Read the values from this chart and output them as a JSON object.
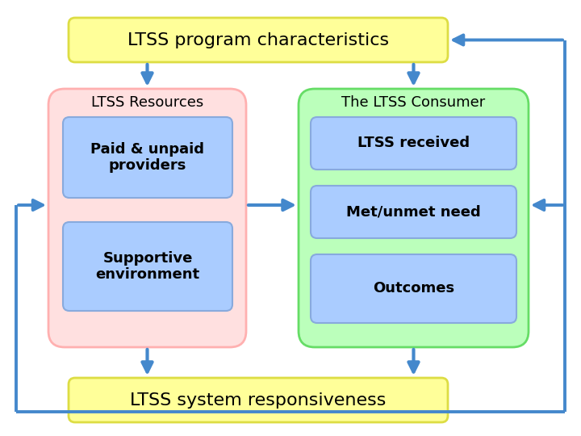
{
  "title": "LTSS program characteristics",
  "bottom_box": "LTSS system responsiveness",
  "left_group_title": "LTSS Resources",
  "right_group_title": "The LTSS Consumer",
  "left_items": [
    "Paid & unpaid\nproviders",
    "Supportive\nenvironment"
  ],
  "right_items": [
    "LTSS received",
    "Met/unmet need",
    "Outcomes"
  ],
  "colors": {
    "yellow_box": "#FFFF99",
    "yellow_border": "#DDDD44",
    "pink_group": "#FFE0E0",
    "pink_border": "#FFB0B0",
    "green_group": "#BBFFBB",
    "green_border": "#66DD66",
    "blue_item": "#AACCFF",
    "blue_item_border": "#88AADD",
    "arrow": "#4488CC",
    "background": "#FFFFFF",
    "text_dark": "#000000"
  },
  "fig_width": 7.2,
  "fig_height": 5.4,
  "dpi": 100
}
